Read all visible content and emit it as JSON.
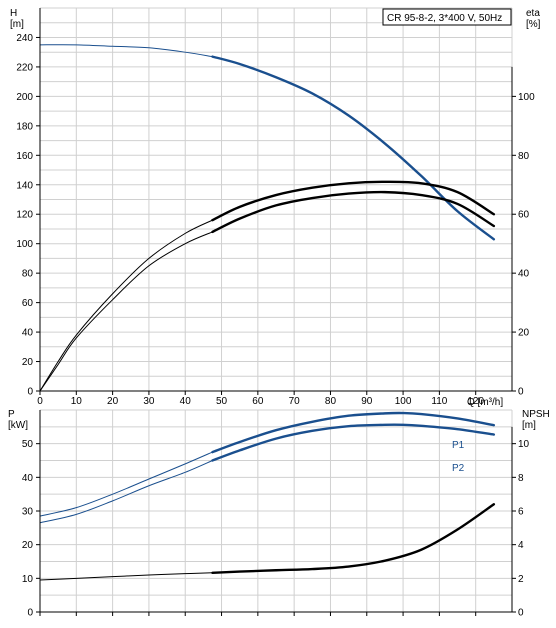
{
  "chart_data": [
    {
      "type": "line",
      "title": "CR 95-8-2, 3*400 V, 50Hz",
      "xlabel": "Q [m³/h]",
      "ylabel": "H\n[m]",
      "y2label": "eta\n[%]",
      "xlim": [
        0,
        130
      ],
      "ylim": [
        0,
        260
      ],
      "y2lim": [
        0,
        130
      ],
      "x_ticks": [
        0,
        10,
        20,
        30,
        40,
        50,
        60,
        70,
        80,
        90,
        100,
        110,
        120
      ],
      "y_ticks": [
        0,
        20,
        40,
        60,
        80,
        100,
        120,
        140,
        160,
        180,
        200,
        220,
        240
      ],
      "y2_ticks": [
        0,
        20,
        40,
        60,
        80,
        100
      ],
      "grid": true,
      "series": [
        {
          "key": "H",
          "axis": "left",
          "color": "#1a4f8e",
          "x": [
            0,
            10,
            20,
            30,
            40,
            47.5,
            55,
            65,
            75,
            85,
            95,
            105,
            115,
            125
          ],
          "y": [
            235,
            235,
            234,
            233,
            230,
            227,
            222,
            213,
            202,
            187,
            168,
            146,
            122,
            103
          ]
        },
        {
          "key": "eta_upper",
          "axis": "right",
          "color": "#000000",
          "x": [
            0,
            5,
            10,
            20,
            30,
            40,
            47.5,
            55,
            65,
            75,
            85,
            95,
            105,
            115,
            125
          ],
          "y": [
            0,
            10,
            19,
            33,
            45,
            53.5,
            58,
            62.5,
            66.5,
            69,
            70.5,
            71,
            70.5,
            67.5,
            60
          ]
        },
        {
          "key": "eta_lower",
          "axis": "right",
          "color": "#000000",
          "x": [
            0,
            5,
            10,
            20,
            30,
            40,
            47.5,
            55,
            65,
            75,
            85,
            95,
            105,
            115,
            125
          ],
          "y": [
            0,
            9,
            18,
            31,
            42.5,
            50,
            54,
            58.5,
            63,
            65.5,
            67,
            67.5,
            66.5,
            63.5,
            56
          ]
        }
      ]
    },
    {
      "type": "line",
      "ylabel": "P\n[kW]",
      "y2label": "NPSH\n[m]",
      "xlim": [
        0,
        130
      ],
      "ylim": [
        0,
        60
      ],
      "y2lim": [
        0,
        12
      ],
      "y_ticks": [
        0,
        10,
        20,
        30,
        40,
        50
      ],
      "y2_ticks": [
        0,
        2,
        4,
        6,
        8,
        10
      ],
      "grid": true,
      "series": [
        {
          "name": "P1",
          "axis": "left",
          "color": "#1a4f8e",
          "x": [
            0,
            10,
            20,
            30,
            40,
            47.5,
            55,
            65,
            75,
            85,
            95,
            100,
            105,
            115,
            125
          ],
          "y": [
            28.5,
            31,
            35,
            39.5,
            44,
            47.5,
            50.5,
            54,
            56.5,
            58.3,
            59,
            59.1,
            58.8,
            57.5,
            55.5
          ]
        },
        {
          "name": "P2",
          "axis": "left",
          "color": "#1a4f8e",
          "x": [
            0,
            10,
            20,
            30,
            40,
            47.5,
            55,
            65,
            75,
            85,
            95,
            100,
            105,
            115,
            125
          ],
          "y": [
            26.5,
            29,
            33,
            37.5,
            41.5,
            45,
            48,
            51.5,
            53.8,
            55.2,
            55.6,
            55.6,
            55.3,
            54.3,
            52.7
          ]
        },
        {
          "key": "NPSH",
          "axis": "right",
          "color": "#000000",
          "x": [
            0,
            10,
            20,
            30,
            40,
            47.5,
            55,
            65,
            75,
            85,
            95,
            105,
            115,
            125
          ],
          "y": [
            1.9,
            2.0,
            2.1,
            2.2,
            2.28,
            2.33,
            2.4,
            2.48,
            2.55,
            2.7,
            3.05,
            3.7,
            4.9,
            6.4
          ]
        }
      ]
    }
  ]
}
